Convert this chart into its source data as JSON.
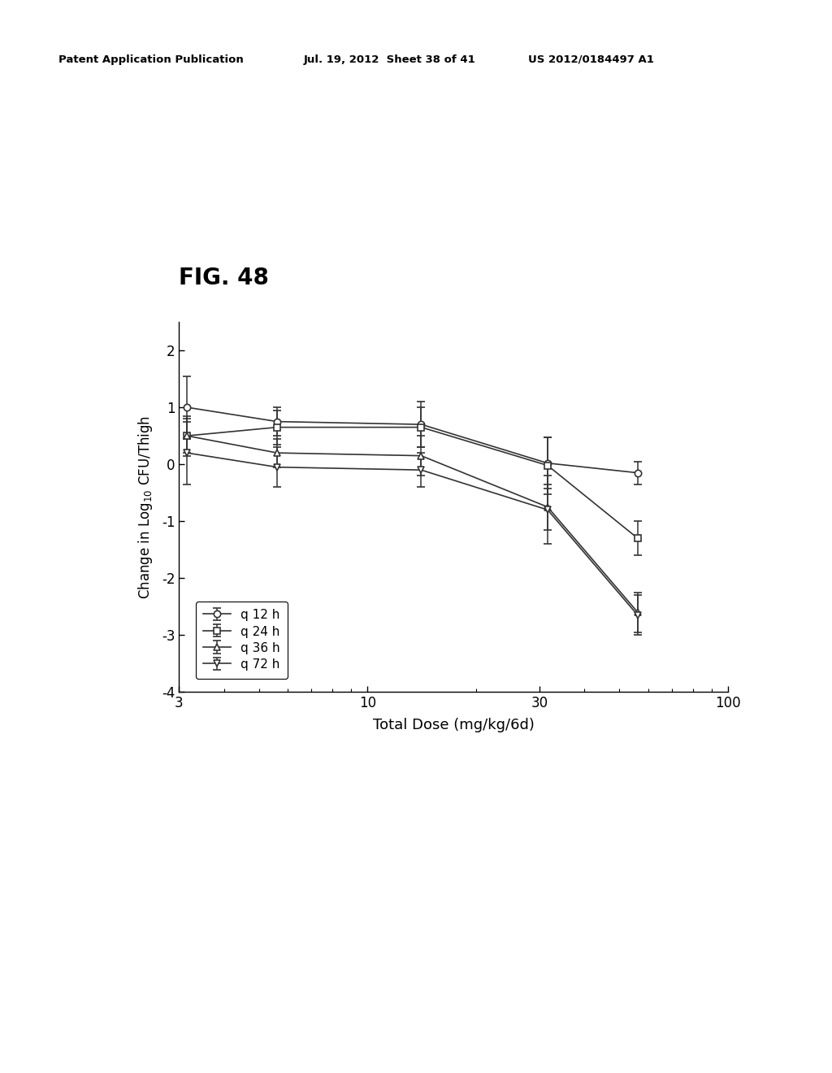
{
  "header_left": "Patent Application Publication",
  "header_mid": "Jul. 19, 2012  Sheet 38 of 41",
  "header_right": "US 2012/0184497 A1",
  "fig_label": "FIG. 48",
  "xlabel": "Total Dose (mg/kg/6d)",
  "ylim": [
    -4,
    2.5
  ],
  "yticks": [
    -4,
    -3,
    -2,
    -1,
    0,
    1,
    2
  ],
  "xticks_log": [
    3,
    10,
    30,
    100
  ],
  "xtick_labels": [
    "3",
    "10",
    "30",
    "100"
  ],
  "background_color": "#ffffff",
  "series": [
    {
      "label": "q 12 h",
      "marker": "o",
      "x": [
        3.16,
        5.62,
        14.1,
        31.6,
        56.2
      ],
      "y": [
        1.0,
        0.75,
        0.7,
        0.02,
        -0.15
      ],
      "yerr": [
        0.55,
        0.25,
        0.4,
        0.45,
        0.2
      ],
      "color": "#333333",
      "linestyle": "-",
      "markersize": 6
    },
    {
      "label": "q 24 h",
      "marker": "s",
      "x": [
        3.16,
        5.62,
        14.1,
        31.6,
        56.2
      ],
      "y": [
        0.5,
        0.65,
        0.65,
        -0.02,
        -1.3
      ],
      "yerr": [
        0.35,
        0.3,
        0.35,
        0.5,
        0.3
      ],
      "color": "#333333",
      "linestyle": "-",
      "markersize": 6
    },
    {
      "label": "q 36 h",
      "marker": "^",
      "x": [
        3.16,
        5.62,
        14.1,
        31.6,
        56.2
      ],
      "y": [
        0.5,
        0.2,
        0.15,
        -0.75,
        -2.6
      ],
      "yerr": [
        0.3,
        0.25,
        0.35,
        0.4,
        0.35
      ],
      "color": "#333333",
      "linestyle": "-",
      "markersize": 6
    },
    {
      "label": "q 72 h",
      "marker": "v",
      "x": [
        3.16,
        5.62,
        14.1,
        31.6,
        56.2
      ],
      "y": [
        0.2,
        -0.05,
        -0.1,
        -0.8,
        -2.65
      ],
      "yerr": [
        0.55,
        0.35,
        0.3,
        0.6,
        0.35
      ],
      "color": "#333333",
      "linestyle": "-",
      "markersize": 6
    }
  ]
}
